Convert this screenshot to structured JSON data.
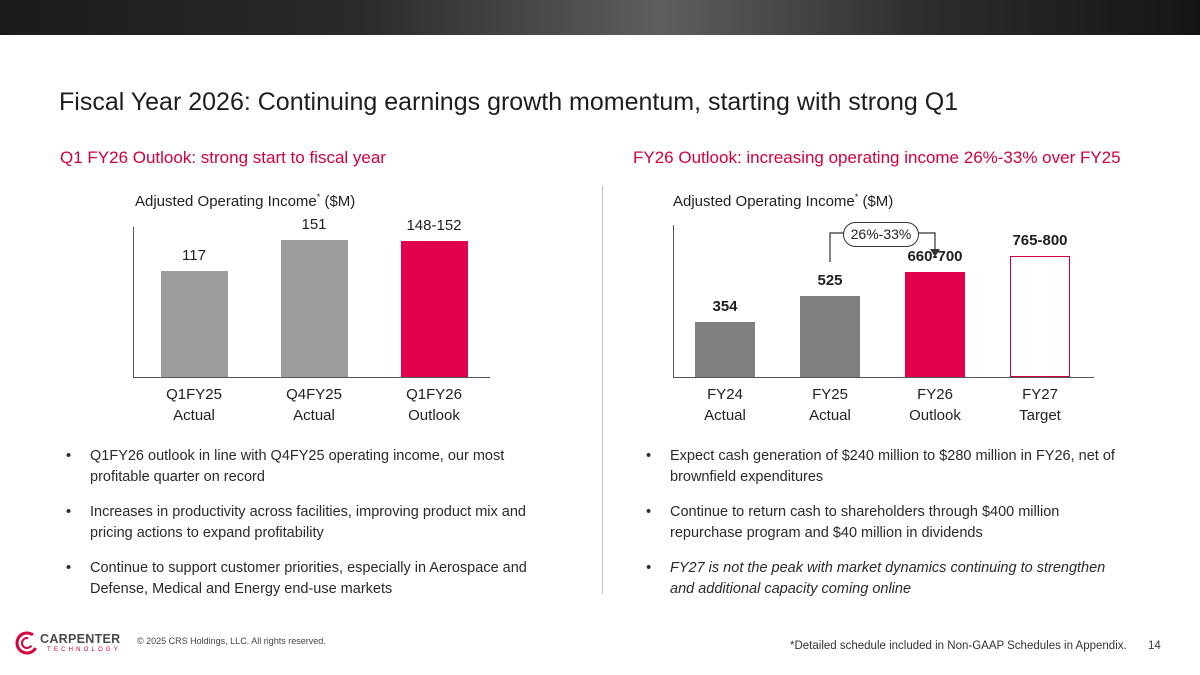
{
  "slide": {
    "title": "Fiscal Year 2026: Continuing earnings growth momentum, starting with strong Q1",
    "page_number": "14",
    "copyright": "© 2025 CRS Holdings, LLC. All rights reserved.",
    "footnote": "*Detailed schedule included in Non-GAAP Schedules in Appendix.",
    "logo": {
      "name": "CARPENTER",
      "sub": "TECHNOLOGY"
    },
    "colors": {
      "accent": "#d3003f",
      "gray_bar": "#9d9d9e",
      "dark_bar": "#7f7f7f",
      "topbar": "#2a2a2a"
    }
  },
  "left": {
    "subtitle": "Q1 FY26 Outlook: strong start to fiscal year",
    "chart_title": "Adjusted Operating Income",
    "chart_title_sup": "*",
    "chart_title_unit": "($M)",
    "bullets": [
      "Q1FY26 outlook in line with Q4FY25 operating income, our most profitable quarter on record",
      "Increases in productivity across facilities, improving product mix and pricing actions to expand profitability",
      "Continue to support customer priorities, especially in Aerospace and Defense, Medical and Energy end-use markets"
    ]
  },
  "right": {
    "subtitle": "FY26 Outlook: increasing operating income 26%-33% over FY25",
    "chart_title": "Adjusted Operating Income",
    "chart_title_sup": "*",
    "chart_title_unit": "($M)",
    "growth_label": "26%-33%",
    "bullets": [
      "Expect cash generation of $240 million to $280 million in FY26, net of brownfield expenditures",
      "Continue to return cash to shareholders through $400 million repurchase program and $40 million in dividends",
      "FY27 is not the peak with market dynamics continuing to strengthen and additional capacity coming online"
    ]
  },
  "chart_data": [
    {
      "type": "bar",
      "title": "Adjusted Operating Income* ($M)",
      "ylabel": "$M",
      "ylim": [
        0,
        200
      ],
      "categories": [
        {
          "line1": "Q1FY25",
          "line2": "Actual"
        },
        {
          "line1": "Q4FY25",
          "line2": "Actual"
        },
        {
          "line1": "Q1FY26",
          "line2": "Outlook"
        }
      ],
      "values": [
        117,
        151,
        150
      ],
      "labels": [
        "117",
        "151",
        "148-152"
      ],
      "colors": [
        "#9d9d9e",
        "#9d9d9e",
        "#e0004d"
      ]
    },
    {
      "type": "bar",
      "title": "Adjusted Operating Income* ($M)",
      "ylabel": "$M",
      "ylim": [
        0,
        1000
      ],
      "categories": [
        {
          "line1": "FY24",
          "line2": "Actual"
        },
        {
          "line1": "FY25",
          "line2": "Actual"
        },
        {
          "line1": "FY26",
          "line2": "Outlook"
        },
        {
          "line1": "FY27",
          "line2": "Target"
        }
      ],
      "values": [
        354,
        525,
        680,
        782.5
      ],
      "labels": [
        "354",
        "525",
        "660-700",
        "765-800"
      ],
      "colors": [
        "#7f7f7f",
        "#7f7f7f",
        "#e0004d",
        "#ffffff"
      ],
      "outline": [
        false,
        false,
        false,
        true
      ]
    }
  ]
}
